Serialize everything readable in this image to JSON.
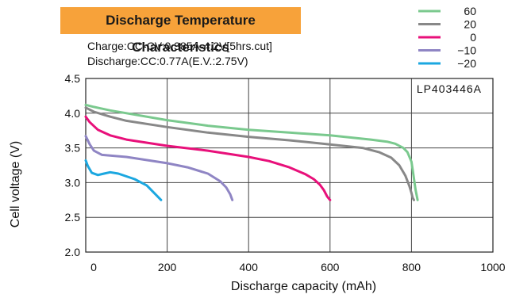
{
  "chart_data": {
    "type": "line",
    "title": "Discharge Temperature Characteristics",
    "notes": [
      "Charge:CC-CV:0.385A-4.2V[5hrs.cut]",
      "Discharge:CC:0.77A(E.V.:2.75V)"
    ],
    "annotation": "LP403446A",
    "xlabel": "Discharge capacity (mAh)",
    "ylabel": "Cell voltage (V)",
    "xlim": [
      0,
      1000
    ],
    "ylim": [
      2.0,
      4.5
    ],
    "xticks": [
      "0",
      "200",
      "400",
      "600",
      "800",
      "1000"
    ],
    "yticks": [
      "2.0",
      "2.5",
      "3.0",
      "3.5",
      "4.0",
      "4.5"
    ],
    "grid": true,
    "legend_position": "top-right",
    "series": [
      {
        "name": "60",
        "color": "#7ac98e",
        "x": [
          0,
          20,
          60,
          100,
          200,
          300,
          400,
          500,
          600,
          700,
          740,
          760,
          780,
          790,
          800,
          805,
          810,
          815
        ],
        "y": [
          4.12,
          4.09,
          4.04,
          4.0,
          3.9,
          3.82,
          3.76,
          3.72,
          3.68,
          3.62,
          3.59,
          3.56,
          3.5,
          3.44,
          3.3,
          3.1,
          2.9,
          2.75
        ]
      },
      {
        "name": "20",
        "color": "#888888",
        "x": [
          0,
          20,
          60,
          100,
          200,
          300,
          400,
          500,
          600,
          680,
          720,
          750,
          770,
          785,
          795,
          800,
          803,
          806
        ],
        "y": [
          4.08,
          4.02,
          3.95,
          3.89,
          3.8,
          3.72,
          3.66,
          3.61,
          3.55,
          3.5,
          3.44,
          3.36,
          3.25,
          3.1,
          2.95,
          2.85,
          2.78,
          2.75
        ]
      },
      {
        "name": "0",
        "color": "#e8107a",
        "x": [
          0,
          10,
          30,
          60,
          100,
          200,
          300,
          400,
          450,
          500,
          540,
          560,
          575,
          585,
          593,
          600
        ],
        "y": [
          3.95,
          3.87,
          3.76,
          3.68,
          3.62,
          3.53,
          3.46,
          3.37,
          3.31,
          3.22,
          3.12,
          3.05,
          2.97,
          2.89,
          2.8,
          2.75
        ]
      },
      {
        "name": "−10",
        "color": "#8f85c4",
        "x": [
          0,
          10,
          20,
          40,
          60,
          100,
          200,
          250,
          300,
          330,
          345,
          355,
          360
        ],
        "y": [
          3.67,
          3.55,
          3.46,
          3.4,
          3.39,
          3.37,
          3.28,
          3.22,
          3.13,
          3.02,
          2.93,
          2.83,
          2.75
        ]
      },
      {
        "name": "−20",
        "color": "#1ba7e0",
        "x": [
          0,
          5,
          15,
          30,
          45,
          60,
          80,
          120,
          150,
          170,
          185
        ],
        "y": [
          3.32,
          3.24,
          3.14,
          3.11,
          3.13,
          3.15,
          3.13,
          3.05,
          2.96,
          2.84,
          2.75
        ]
      }
    ]
  }
}
